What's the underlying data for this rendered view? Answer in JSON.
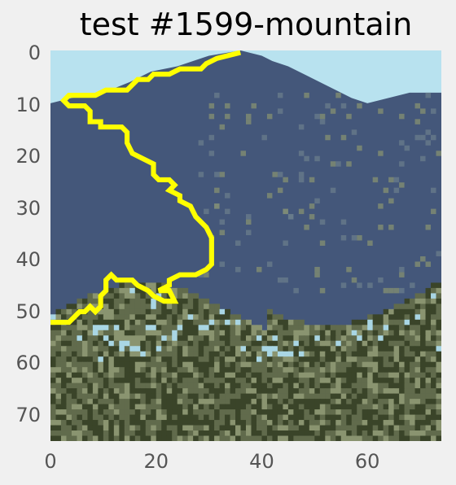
{
  "figure": {
    "title": "test #1599-mountain"
  },
  "image": {
    "subject": "mountain landscape",
    "pixel_grid": [
      74,
      74
    ],
    "palette": {
      "sky": "#b8e2ef",
      "mountain": "#44577a",
      "mountain_light": "#6c7f8d",
      "vegetation_light": "#8a9470",
      "vegetation": "#616b4c",
      "vegetation_dark": "#3a4429",
      "highlight": "#a9d6e4"
    }
  },
  "overlay": {
    "color": "#ffff00",
    "path": [
      [
        35,
        0
      ],
      [
        31,
        1
      ],
      [
        29,
        2
      ],
      [
        28,
        3
      ],
      [
        24,
        3
      ],
      [
        22,
        4
      ],
      [
        19,
        4
      ],
      [
        18,
        5
      ],
      [
        16,
        5
      ],
      [
        15,
        6
      ],
      [
        14,
        7
      ],
      [
        10,
        7
      ],
      [
        8,
        8
      ],
      [
        3,
        8
      ],
      [
        2,
        9
      ],
      [
        3,
        10
      ],
      [
        6,
        10
      ],
      [
        7,
        11
      ],
      [
        7,
        13
      ],
      [
        9,
        13
      ],
      [
        9,
        14
      ],
      [
        13,
        14
      ],
      [
        14,
        15
      ],
      [
        14,
        17
      ],
      [
        15,
        19
      ],
      [
        17,
        20
      ],
      [
        19,
        21
      ],
      [
        19,
        23
      ],
      [
        20,
        24
      ],
      [
        22,
        24
      ],
      [
        23,
        25
      ],
      [
        22,
        26
      ],
      [
        24,
        27
      ],
      [
        24,
        28
      ],
      [
        26,
        29
      ],
      [
        27,
        31
      ],
      [
        28,
        32
      ],
      [
        29,
        33
      ],
      [
        30,
        35
      ],
      [
        30,
        40
      ],
      [
        29,
        41
      ],
      [
        27,
        42
      ],
      [
        24,
        42
      ],
      [
        22,
        43
      ],
      [
        22,
        44
      ],
      [
        20,
        45
      ],
      [
        22,
        45
      ],
      [
        23,
        47
      ],
      [
        21,
        47
      ],
      [
        19,
        46
      ],
      [
        18,
        45
      ],
      [
        16,
        44
      ],
      [
        15,
        43
      ],
      [
        12,
        43
      ],
      [
        11,
        42
      ],
      [
        10,
        43
      ],
      [
        10,
        45
      ],
      [
        9,
        46
      ],
      [
        9,
        48
      ],
      [
        8,
        49
      ],
      [
        7,
        48
      ],
      [
        6,
        49
      ],
      [
        5,
        49
      ],
      [
        4,
        50
      ],
      [
        3,
        51
      ],
      [
        1,
        51
      ],
      [
        0,
        51
      ]
    ]
  },
  "axes": {
    "xlim": [
      0,
      74
    ],
    "ylim": [
      0,
      74
    ],
    "yinverted": true,
    "grid": false,
    "xticks": [
      "0",
      "20",
      "40",
      "60"
    ],
    "xtick_values": [
      0,
      20,
      40,
      60
    ],
    "yticks": [
      "0",
      "10",
      "20",
      "30",
      "40",
      "50",
      "60",
      "70"
    ],
    "ytick_values": [
      0,
      10,
      20,
      30,
      40,
      50,
      60,
      70
    ]
  }
}
